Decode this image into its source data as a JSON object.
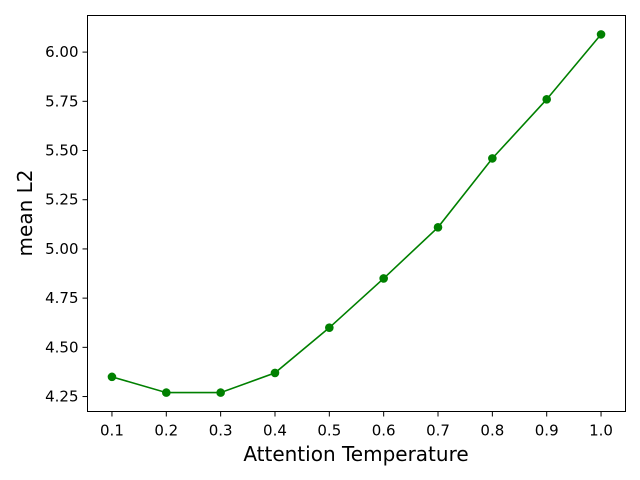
{
  "chart_data": {
    "type": "line",
    "title": "",
    "xlabel": "Attention Temperature",
    "ylabel": "mean L2",
    "xlim": [
      0.055,
      1.045
    ],
    "ylim": [
      4.174,
      6.186
    ],
    "x_ticks": [
      "0.1",
      "0.2",
      "0.3",
      "0.4",
      "0.5",
      "0.6",
      "0.7",
      "0.8",
      "0.9",
      "1.0"
    ],
    "y_ticks": [
      "4.25",
      "4.50",
      "4.75",
      "5.00",
      "5.25",
      "5.50",
      "5.75",
      "6.00"
    ],
    "grid": false,
    "legend": false,
    "series": [
      {
        "color": "#008000",
        "marker": "circle",
        "x": [
          0.1,
          0.2,
          0.3,
          0.4,
          0.5,
          0.6,
          0.7,
          0.8,
          0.9,
          1.0
        ],
        "y": [
          4.35,
          4.27,
          4.27,
          4.37,
          4.6,
          4.85,
          5.11,
          5.46,
          5.76,
          6.09
        ]
      }
    ]
  }
}
